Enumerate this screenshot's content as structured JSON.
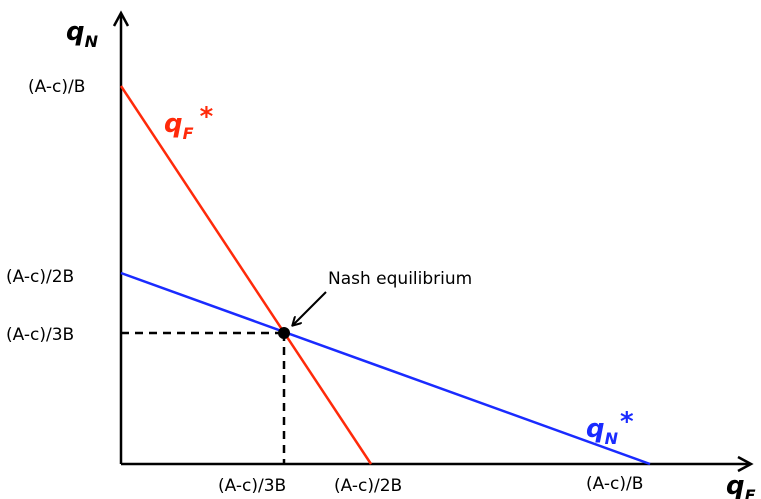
{
  "diagram": {
    "y_axis_label": {
      "base": "q",
      "sub": "N"
    },
    "x_axis_label": {
      "base": "q",
      "sub": "F"
    },
    "y_ticks": [
      "(A-c)/B",
      "(A-c)/2B",
      "(A-c)/3B"
    ],
    "x_ticks": [
      "(A-c)/3B",
      "(A-c)/2B",
      "(A-c)/B"
    ],
    "curves": [
      {
        "base": "q",
        "sub": "F",
        "star": "*",
        "color": "#ff2a0a"
      },
      {
        "base": "q",
        "sub": "N",
        "star": "*",
        "color": "#1a2bff"
      }
    ],
    "annotation": "Nash equilibrium",
    "colors": {
      "axis": "#000000",
      "qF": "#ff2a0a",
      "qN": "#1a2bff",
      "point": "#000000"
    }
  }
}
